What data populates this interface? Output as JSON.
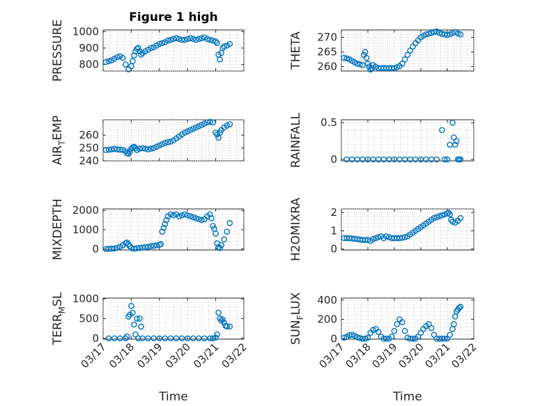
{
  "figure": {
    "title": "Figure 1 high",
    "xlabel": "Time",
    "xticks": [
      "03/17",
      "03/18",
      "03/19",
      "03/20",
      "03/21",
      "03/22"
    ],
    "marker_color": "#0072bd"
  },
  "chart_data": [
    {
      "type": "scatter",
      "title": "Figure 1 high",
      "ylabel": "PRESSURE",
      "ylim": [
        760,
        1010
      ],
      "yticks": [
        "800",
        "900",
        "1000"
      ],
      "xlim": [
        0,
        5
      ],
      "grid": true,
      "x": [
        0.1,
        0.2,
        0.3,
        0.4,
        0.5,
        0.6,
        0.7,
        0.8,
        0.9,
        1.0,
        1.05,
        1.1,
        1.15,
        1.2,
        1.25,
        1.3,
        1.35,
        1.4,
        1.5,
        1.6,
        1.7,
        1.8,
        1.9,
        2.0,
        2.1,
        2.2,
        2.3,
        2.4,
        2.5,
        2.6,
        2.7,
        2.8,
        2.9,
        3.0,
        3.1,
        3.2,
        3.3,
        3.4,
        3.5,
        3.6,
        3.7,
        3.8,
        3.9,
        4.0,
        4.05,
        4.1,
        4.15,
        4.2,
        4.25,
        4.3,
        4.4,
        4.5
      ],
      "y": [
        815,
        820,
        825,
        835,
        845,
        850,
        840,
        800,
        770,
        790,
        820,
        855,
        880,
        895,
        900,
        880,
        860,
        870,
        880,
        890,
        900,
        905,
        915,
        925,
        930,
        935,
        945,
        950,
        955,
        960,
        955,
        950,
        950,
        955,
        960,
        955,
        950,
        955,
        960,
        965,
        955,
        950,
        945,
        940,
        930,
        860,
        830,
        870,
        900,
        910,
        915,
        925
      ]
    },
    {
      "type": "scatter",
      "ylabel": "THETA",
      "ylim": [
        258.5,
        272.5
      ],
      "yticks": [
        "260",
        "265",
        "270"
      ],
      "xlim": [
        0,
        5
      ],
      "grid": true,
      "x": [
        0.1,
        0.2,
        0.3,
        0.4,
        0.5,
        0.6,
        0.7,
        0.8,
        0.85,
        0.9,
        0.95,
        1.0,
        1.05,
        1.1,
        1.15,
        1.2,
        1.3,
        1.4,
        1.5,
        1.6,
        1.7,
        1.8,
        1.9,
        2.0,
        2.1,
        2.2,
        2.3,
        2.4,
        2.5,
        2.6,
        2.7,
        2.8,
        2.9,
        3.0,
        3.1,
        3.2,
        3.3,
        3.4,
        3.5,
        3.6,
        3.7,
        3.8,
        3.9,
        4.0,
        4.1,
        4.2,
        4.3,
        4.4,
        4.5
      ],
      "y": [
        263,
        262.8,
        262.5,
        262,
        261.5,
        261,
        260.8,
        260.5,
        264,
        265,
        263,
        261,
        260,
        259,
        259.5,
        260.5,
        260,
        259.5,
        259.5,
        259.5,
        259.5,
        259.5,
        259.5,
        259.5,
        259.8,
        260.2,
        261,
        262.5,
        264,
        265.5,
        266.8,
        268,
        269,
        270,
        270.5,
        271,
        271.2,
        271.5,
        271.8,
        272,
        271.5,
        271.2,
        271,
        270.8,
        271,
        271.5,
        271.8,
        271.3,
        271
      ]
    },
    {
      "type": "scatter",
      "ylabel": "AIR_TEMP",
      "ylim": [
        240,
        272
      ],
      "yticks": [
        "240",
        "250",
        "260"
      ],
      "xlim": [
        0,
        5
      ],
      "grid": true,
      "x": [
        0.1,
        0.2,
        0.3,
        0.4,
        0.5,
        0.6,
        0.7,
        0.8,
        0.85,
        0.9,
        0.95,
        1.0,
        1.05,
        1.1,
        1.15,
        1.2,
        1.3,
        1.4,
        1.5,
        1.6,
        1.7,
        1.8,
        1.9,
        2.0,
        2.1,
        2.2,
        2.3,
        2.4,
        2.5,
        2.6,
        2.7,
        2.8,
        2.9,
        3.0,
        3.1,
        3.2,
        3.3,
        3.4,
        3.5,
        3.6,
        3.7,
        3.8,
        3.9,
        4.0,
        4.05,
        4.1,
        4.15,
        4.2,
        4.3,
        4.4,
        4.5
      ],
      "y": [
        248.5,
        248.7,
        249,
        249.3,
        249,
        248.8,
        248.5,
        247.5,
        246,
        245.5,
        247,
        249.5,
        250.5,
        251,
        250,
        248.5,
        249.5,
        249.8,
        249.5,
        249,
        249.5,
        250,
        251,
        252,
        253,
        254,
        254.5,
        255,
        256,
        257.5,
        259,
        260.5,
        262,
        263,
        264,
        265,
        266,
        267,
        268,
        269,
        270,
        270.5,
        270,
        262,
        260.5,
        258,
        262,
        264,
        266,
        267.5,
        268.5
      ]
    },
    {
      "type": "scatter",
      "ylabel": "RAINFALL",
      "ylim": [
        -0.02,
        0.54
      ],
      "yticks": [
        "0",
        "0.5"
      ],
      "xlim": [
        0,
        5
      ],
      "grid": true,
      "x": [
        0.2,
        0.4,
        0.6,
        0.8,
        1.0,
        1.2,
        1.4,
        1.6,
        1.8,
        2.0,
        2.2,
        2.4,
        2.6,
        2.8,
        3.0,
        3.2,
        3.4,
        3.6,
        3.8,
        3.9,
        4.0,
        4.1,
        4.2,
        4.25,
        4.3,
        4.35,
        4.4,
        4.45,
        4.5
      ],
      "y": [
        0,
        0,
        0,
        0,
        0,
        0,
        0,
        0,
        0,
        0,
        0,
        0,
        0,
        0,
        0,
        0,
        0,
        0,
        0.4,
        0,
        0,
        0.2,
        0.5,
        0.3,
        0.2,
        0.25,
        0,
        0,
        0
      ]
    },
    {
      "type": "scatter",
      "ylabel": "MIXDEPTH",
      "ylim": [
        -50,
        2080
      ],
      "yticks": [
        "0",
        "1000",
        "2000"
      ],
      "xlim": [
        0,
        5
      ],
      "grid": true,
      "x": [
        0.1,
        0.2,
        0.3,
        0.4,
        0.5,
        0.6,
        0.7,
        0.8,
        0.85,
        0.9,
        0.95,
        1.0,
        1.1,
        1.2,
        1.3,
        1.4,
        1.5,
        1.6,
        1.7,
        1.8,
        1.9,
        2.0,
        2.05,
        2.1,
        2.15,
        2.2,
        2.25,
        2.3,
        2.4,
        2.5,
        2.6,
        2.7,
        2.8,
        2.9,
        3.0,
        3.1,
        3.2,
        3.3,
        3.4,
        3.5,
        3.6,
        3.7,
        3.8,
        3.85,
        3.9,
        3.95,
        4.0,
        4.05,
        4.1,
        4.15,
        4.2,
        4.3,
        4.4,
        4.5
      ],
      "y": [
        0,
        10,
        20,
        30,
        60,
        120,
        200,
        300,
        340,
        250,
        150,
        50,
        20,
        40,
        60,
        80,
        100,
        120,
        150,
        170,
        200,
        220,
        260,
        900,
        1100,
        1300,
        1500,
        1700,
        1800,
        1750,
        1800,
        1700,
        1750,
        1800,
        1750,
        1700,
        1650,
        1600,
        1550,
        1500,
        1550,
        1700,
        1800,
        1600,
        1200,
        1050,
        800,
        300,
        100,
        50,
        200,
        500,
        900,
        1350
      ]
    },
    {
      "type": "scatter",
      "ylabel": "H2OMIXRA",
      "ylim": [
        -0.05,
        2.2
      ],
      "yticks": [
        "0",
        "1",
        "2"
      ],
      "xlim": [
        0,
        5
      ],
      "grid": true,
      "x": [
        0.1,
        0.2,
        0.3,
        0.4,
        0.5,
        0.6,
        0.7,
        0.8,
        0.9,
        1.0,
        1.1,
        1.2,
        1.3,
        1.4,
        1.5,
        1.6,
        1.7,
        1.8,
        1.9,
        2.0,
        2.1,
        2.2,
        2.3,
        2.4,
        2.5,
        2.6,
        2.7,
        2.8,
        2.9,
        3.0,
        3.1,
        3.2,
        3.3,
        3.4,
        3.5,
        3.6,
        3.7,
        3.8,
        3.9,
        4.0,
        4.05,
        4.1,
        4.15,
        4.2,
        4.3,
        4.4,
        4.5
      ],
      "y": [
        0.6,
        0.6,
        0.6,
        0.58,
        0.56,
        0.55,
        0.52,
        0.5,
        0.5,
        0.5,
        0.45,
        0.55,
        0.6,
        0.65,
        0.7,
        0.6,
        0.7,
        0.65,
        0.6,
        0.6,
        0.6,
        0.6,
        0.62,
        0.65,
        0.7,
        0.8,
        0.9,
        1.0,
        1.1,
        1.2,
        1.3,
        1.4,
        1.5,
        1.6,
        1.7,
        1.75,
        1.8,
        1.85,
        1.9,
        1.95,
        2.0,
        1.9,
        1.6,
        1.5,
        1.45,
        1.55,
        1.7
      ]
    },
    {
      "type": "scatter",
      "ylabel": "TERR_MSL",
      "ylim": [
        -20,
        1020
      ],
      "yticks": [
        "0",
        "500",
        "1000"
      ],
      "xlim": [
        0,
        5
      ],
      "grid": true,
      "x": [
        0.2,
        0.4,
        0.6,
        0.8,
        0.85,
        0.9,
        0.95,
        1.0,
        1.05,
        1.1,
        1.15,
        1.2,
        1.25,
        1.3,
        1.35,
        1.4,
        1.6,
        1.8,
        2.0,
        2.2,
        2.4,
        2.6,
        2.8,
        3.0,
        3.2,
        3.4,
        3.6,
        3.8,
        3.9,
        4.0,
        4.05,
        4.1,
        4.15,
        4.2,
        4.25,
        4.3,
        4.35,
        4.4,
        4.5
      ],
      "y": [
        0,
        0,
        0,
        0,
        50,
        550,
        600,
        820,
        650,
        350,
        100,
        500,
        0,
        500,
        300,
        0,
        0,
        0,
        0,
        0,
        0,
        0,
        0,
        0,
        0,
        0,
        0,
        0,
        0,
        20,
        100,
        650,
        500,
        450,
        480,
        400,
        320,
        300,
        300
      ]
    },
    {
      "type": "scatter",
      "ylabel": "SUN_FLUX",
      "ylim": [
        -5,
        420
      ],
      "yticks": [
        "0",
        "200",
        "400"
      ],
      "xlim": [
        0,
        5
      ],
      "grid": true,
      "x": [
        0.1,
        0.2,
        0.3,
        0.4,
        0.5,
        0.6,
        0.7,
        0.8,
        0.9,
        1.0,
        1.1,
        1.2,
        1.3,
        1.4,
        1.5,
        1.6,
        1.7,
        1.8,
        1.9,
        2.0,
        2.1,
        2.2,
        2.3,
        2.4,
        2.5,
        2.6,
        2.7,
        2.8,
        2.9,
        3.0,
        3.1,
        3.2,
        3.3,
        3.4,
        3.5,
        3.6,
        3.7,
        3.8,
        3.9,
        4.0,
        4.1,
        4.2,
        4.25,
        4.3,
        4.35,
        4.4,
        4.45,
        4.5
      ],
      "y": [
        10,
        20,
        35,
        40,
        30,
        15,
        5,
        0,
        0,
        10,
        60,
        90,
        100,
        70,
        20,
        0,
        0,
        0,
        20,
        80,
        150,
        200,
        170,
        80,
        10,
        0,
        0,
        0,
        20,
        60,
        100,
        130,
        150,
        110,
        40,
        0,
        0,
        0,
        0,
        0,
        40,
        100,
        150,
        230,
        280,
        300,
        320,
        330
      ]
    }
  ]
}
